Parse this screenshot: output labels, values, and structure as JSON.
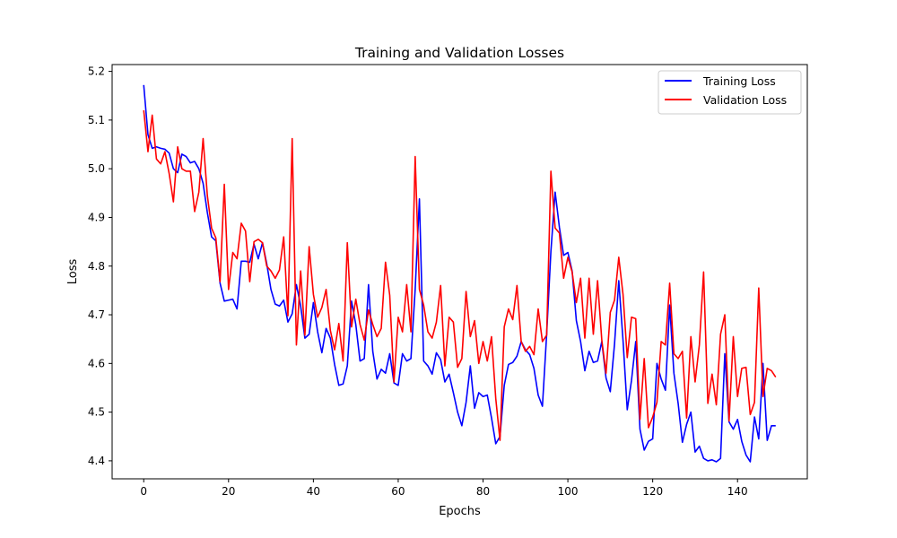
{
  "chart_data": {
    "type": "line",
    "title": "Training and Validation Losses",
    "xlabel": "Epochs",
    "ylabel": "Loss",
    "xlim": [
      -7.45,
      156.45
    ],
    "ylim": [
      4.363,
      5.214
    ],
    "xticks": [
      0,
      20,
      40,
      60,
      80,
      100,
      120,
      140
    ],
    "xtick_labels": [
      "0",
      "20",
      "40",
      "60",
      "80",
      "100",
      "120",
      "140"
    ],
    "yticks": [
      4.4,
      4.5,
      4.6,
      4.7,
      4.8,
      4.9,
      5.0,
      5.1,
      5.2
    ],
    "ytick_labels": [
      "4.4",
      "4.5",
      "4.6",
      "4.7",
      "4.8",
      "4.9",
      "5.0",
      "5.1",
      "5.2"
    ],
    "grid": false,
    "legend_position": "top-right",
    "series": [
      {
        "name": "Training Loss",
        "color": "#0000ff",
        "x_start": 0,
        "x_step": 1,
        "values": [
          5.172,
          5.07,
          5.042,
          5.045,
          5.042,
          5.04,
          5.032,
          5.0,
          4.992,
          5.03,
          5.025,
          5.012,
          5.015,
          5.0,
          4.97,
          4.91,
          4.86,
          4.852,
          4.765,
          4.728,
          4.73,
          4.732,
          4.712,
          4.81,
          4.81,
          4.808,
          4.845,
          4.815,
          4.848,
          4.805,
          4.752,
          4.722,
          4.718,
          4.73,
          4.685,
          4.702,
          4.762,
          4.718,
          4.652,
          4.66,
          4.725,
          4.665,
          4.622,
          4.672,
          4.652,
          4.598,
          4.555,
          4.558,
          4.595,
          4.728,
          4.68,
          4.605,
          4.61,
          4.762,
          4.625,
          4.568,
          4.588,
          4.58,
          4.62,
          4.56,
          4.555,
          4.62,
          4.605,
          4.61,
          4.752,
          4.938,
          4.605,
          4.595,
          4.578,
          4.622,
          4.608,
          4.562,
          4.578,
          4.54,
          4.5,
          4.472,
          4.52,
          4.595,
          4.508,
          4.54,
          4.532,
          4.535,
          4.488,
          4.435,
          4.45,
          4.555,
          4.598,
          4.602,
          4.615,
          4.645,
          4.628,
          4.618,
          4.59,
          4.535,
          4.512,
          4.66,
          4.83,
          4.952,
          4.88,
          4.822,
          4.828,
          4.79,
          4.688,
          4.645,
          4.585,
          4.625,
          4.602,
          4.605,
          4.645,
          4.57,
          4.542,
          4.64,
          4.77,
          4.648,
          4.505,
          4.565,
          4.645,
          4.465,
          4.422,
          4.44,
          4.445,
          4.6,
          4.568,
          4.545,
          4.72,
          4.58,
          4.518,
          4.438,
          4.475,
          4.5,
          4.418,
          4.43,
          4.405,
          4.4,
          4.402,
          4.398,
          4.405,
          4.62,
          4.48,
          4.465,
          4.485,
          4.44,
          4.412,
          4.398,
          4.49,
          4.445,
          4.6,
          4.442,
          4.472,
          4.472
        ]
      },
      {
        "name": "Validation Loss",
        "color": "#ff0000",
        "x_start": 0,
        "x_step": 1,
        "values": [
          5.12,
          5.035,
          5.11,
          5.02,
          5.01,
          5.035,
          4.99,
          4.932,
          5.045,
          5.0,
          4.995,
          4.995,
          4.912,
          4.952,
          5.062,
          4.945,
          4.878,
          4.858,
          4.768,
          4.968,
          4.752,
          4.828,
          4.815,
          4.888,
          4.872,
          4.768,
          4.85,
          4.855,
          4.848,
          4.8,
          4.79,
          4.775,
          4.792,
          4.86,
          4.698,
          5.062,
          4.638,
          4.79,
          4.658,
          4.84,
          4.742,
          4.695,
          4.715,
          4.752,
          4.668,
          4.628,
          4.682,
          4.605,
          4.848,
          4.675,
          4.732,
          4.68,
          4.648,
          4.71,
          4.68,
          4.655,
          4.672,
          4.808,
          4.74,
          4.562,
          4.695,
          4.665,
          4.762,
          4.665,
          5.025,
          4.752,
          4.72,
          4.665,
          4.652,
          4.685,
          4.76,
          4.595,
          4.695,
          4.685,
          4.592,
          4.61,
          4.748,
          4.655,
          4.688,
          4.6,
          4.645,
          4.605,
          4.655,
          4.528,
          4.442,
          4.675,
          4.712,
          4.69,
          4.76,
          4.645,
          4.625,
          4.635,
          4.618,
          4.712,
          4.645,
          4.658,
          4.995,
          4.878,
          4.868,
          4.775,
          4.818,
          4.788,
          4.725,
          4.775,
          4.652,
          4.775,
          4.66,
          4.77,
          4.648,
          4.58,
          4.705,
          4.73,
          4.818,
          4.742,
          4.612,
          4.695,
          4.692,
          4.485,
          4.61,
          4.468,
          4.49,
          4.52,
          4.645,
          4.638,
          4.765,
          4.62,
          4.61,
          4.625,
          4.488,
          4.655,
          4.562,
          4.638,
          4.788,
          4.518,
          4.578,
          4.515,
          4.66,
          4.7,
          4.482,
          4.655,
          4.532,
          4.59,
          4.592,
          4.495,
          4.52,
          4.755,
          4.532,
          4.59,
          4.585,
          4.572
        ]
      }
    ]
  }
}
